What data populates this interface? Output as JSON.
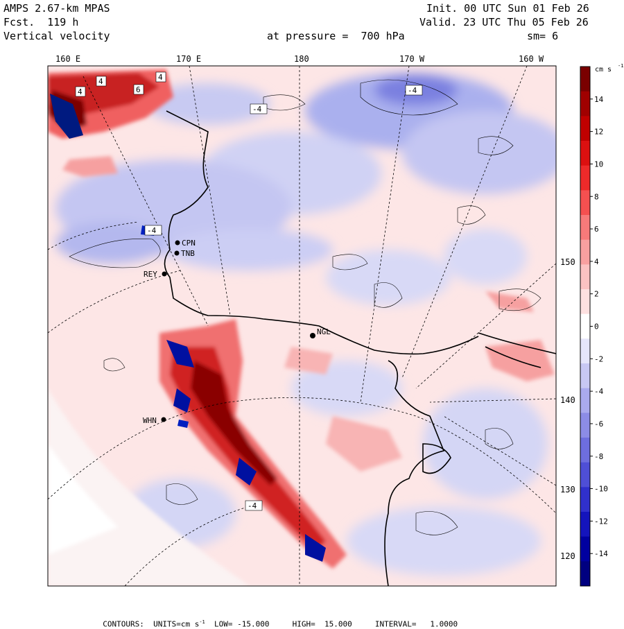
{
  "header": {
    "model": "AMPS 2.67-km MPAS",
    "forecast": "Fcst.  119 h",
    "field": "Vertical velocity",
    "pressure": "at pressure =  700 hPa",
    "init": "Init. 00 UTC Sun 01 Feb 26",
    "valid": "Valid. 23 UTC Thu 05 Feb 26",
    "smoothing": "sm= 6"
  },
  "map": {
    "longitude_labels": [
      "160 E",
      "170 E",
      "180",
      "170 W",
      "160 W"
    ],
    "latitude_labels": [
      "150 W",
      "140 W",
      "130 W",
      "120 W"
    ],
    "stations": [
      "CPN",
      "TNB",
      "REY",
      "NGL",
      "WHN"
    ],
    "contour_labels": [
      "4",
      "6",
      "4",
      "-4",
      "-4",
      "-4",
      "4",
      "-4"
    ]
  },
  "colorbar": {
    "units": "cm s",
    "units_exp": "-1",
    "ticks": [
      "14",
      "12",
      "10",
      "8",
      "6",
      "4",
      "2",
      "0",
      "-2",
      "-4",
      "-6",
      "-8",
      "-10",
      "-12",
      "-14"
    ],
    "colors": [
      "#7a0000",
      "#a00000",
      "#c00000",
      "#dc1010",
      "#ee2a2a",
      "#f55050",
      "#f77a7a",
      "#f8a0a0",
      "#fbc2c2",
      "#fde0e0",
      "#ffffff",
      "#e6e6fb",
      "#c8c8f3",
      "#aaaaee",
      "#8c8ce6",
      "#6e6ede",
      "#4f4fd6",
      "#3030cc",
      "#1414bc",
      "#0000a0",
      "#000080"
    ]
  },
  "footer": {
    "contours": "CONTOURS:",
    "units_label": "UNITS=cm s",
    "units_exp": "-1",
    "low": "LOW= -15.000",
    "high": "HIGH=  15.000",
    "interval": "INTERVAL=   1.0000"
  }
}
